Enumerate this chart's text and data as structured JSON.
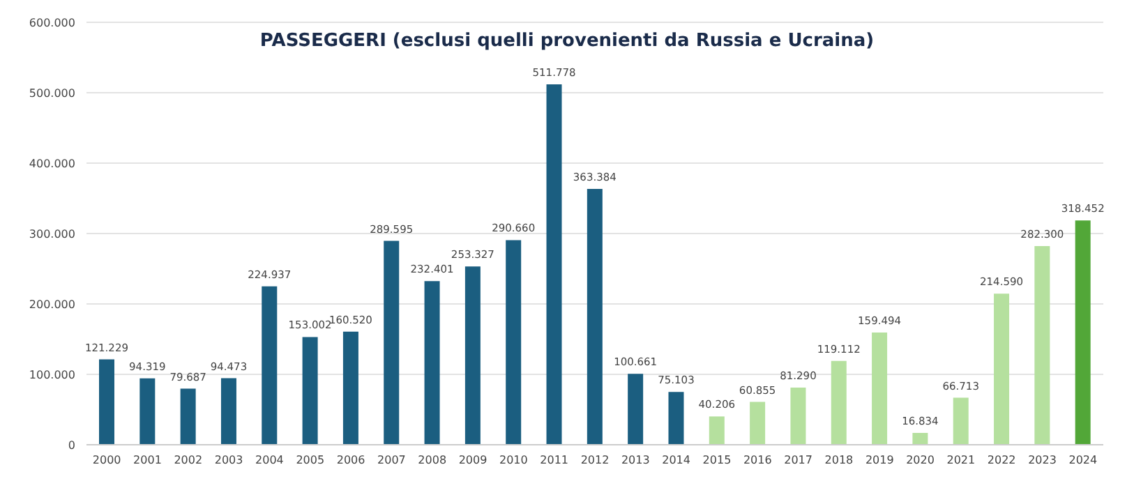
{
  "chart_data": {
    "type": "bar",
    "title": "PASSEGGERI (esclusi quelli provenienti da Russia e Ucraina)",
    "categories": [
      "2000",
      "2001",
      "2002",
      "2003",
      "2004",
      "2005",
      "2006",
      "2007",
      "2008",
      "2009",
      "2010",
      "2011",
      "2012",
      "2013",
      "2014",
      "2015",
      "2016",
      "2017",
      "2018",
      "2019",
      "2020",
      "2021",
      "2022",
      "2023",
      "2024"
    ],
    "values": [
      121229,
      94319,
      79687,
      94473,
      224937,
      153002,
      160520,
      289595,
      232401,
      253327,
      290660,
      511778,
      363384,
      100661,
      75103,
      40206,
      60855,
      81290,
      119112,
      159494,
      16834,
      66713,
      214590,
      282300,
      318452
    ],
    "value_labels": [
      "121.229",
      "94.319",
      "79.687",
      "94.473",
      "224.937",
      "153.002",
      "160.520",
      "289.595",
      "232.401",
      "253.327",
      "290.660",
      "511.778",
      "363.384",
      "100.661",
      "75.103",
      "40.206",
      "60.855",
      "81.290",
      "119.112",
      "159.494",
      "16.834",
      "66.713",
      "214.590",
      "282.300",
      "318.452"
    ],
    "colors": [
      "#1b5e80",
      "#1b5e80",
      "#1b5e80",
      "#1b5e80",
      "#1b5e80",
      "#1b5e80",
      "#1b5e80",
      "#1b5e80",
      "#1b5e80",
      "#1b5e80",
      "#1b5e80",
      "#1b5e80",
      "#1b5e80",
      "#1b5e80",
      "#1b5e80",
      "#b5e09e",
      "#b5e09e",
      "#b5e09e",
      "#b5e09e",
      "#b5e09e",
      "#b5e09e",
      "#b5e09e",
      "#b5e09e",
      "#b5e09e",
      "#52a738"
    ],
    "ylim": [
      0,
      600000
    ],
    "yticks": [
      {
        "value": 0,
        "label": "0"
      },
      {
        "value": 100000,
        "label": "100.000"
      },
      {
        "value": 200000,
        "label": "200.000"
      },
      {
        "value": 300000,
        "label": "300.000"
      },
      {
        "value": 400000,
        "label": "400.000"
      },
      {
        "value": 500000,
        "label": "500.000"
      },
      {
        "value": 600000,
        "label": "600.000"
      }
    ],
    "grid": "y"
  }
}
